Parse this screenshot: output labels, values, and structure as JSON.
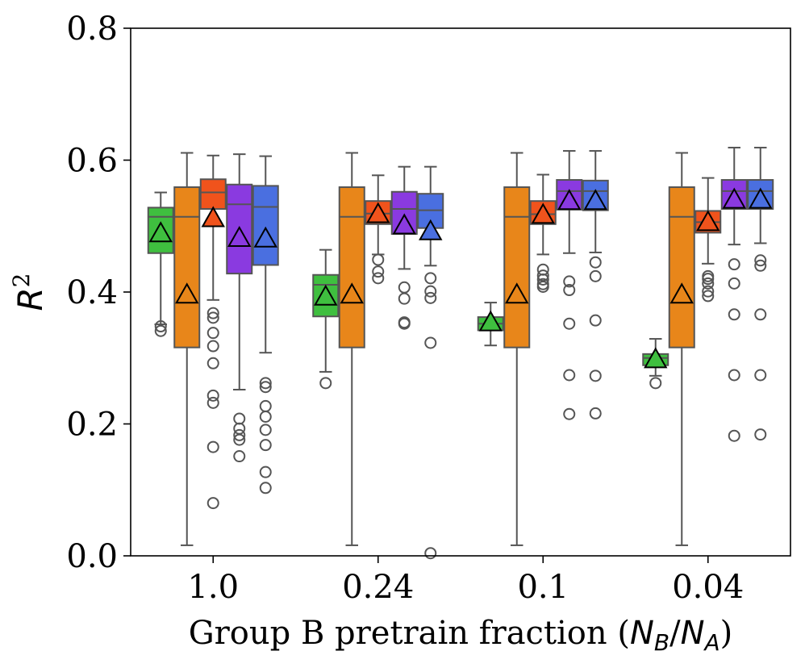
{
  "chart_data": {
    "type": "box",
    "title": "",
    "xlabel_prefix": "Group B pretrain fraction (",
    "xlabel_NB": "N",
    "xlabel_NB_sub": "B",
    "xlabel_slash": "/",
    "xlabel_NA": "N",
    "xlabel_NA_sub": "A",
    "xlabel_suffix": ")",
    "ylabel_base": "R",
    "ylabel_sup": "2",
    "ylim": [
      0.0,
      0.8
    ],
    "yticks": [
      "0.0",
      "0.2",
      "0.4",
      "0.6",
      "0.8"
    ],
    "categories": [
      "1.0",
      "0.24",
      "0.1",
      "0.04"
    ],
    "series_colors": [
      "#3fbf3f",
      "#e8861a",
      "#f0531c",
      "#8a3ae0",
      "#4a6fe0"
    ],
    "groups": [
      {
        "category": "1.0",
        "boxes": [
          {
            "q1": 0.459,
            "median": 0.514,
            "q3": 0.528,
            "whislo": 0.351,
            "whishi": 0.551,
            "mean": 0.488,
            "fliers": [
              0.348,
              0.341
            ]
          },
          {
            "q1": 0.316,
            "median": 0.514,
            "q3": 0.559,
            "whislo": 0.016,
            "whishi": 0.611,
            "mean": 0.395,
            "fliers": []
          },
          {
            "q1": 0.526,
            "median": 0.551,
            "q3": 0.571,
            "whislo": 0.388,
            "whishi": 0.607,
            "mean": 0.511,
            "fliers": [
              0.368,
              0.361,
              0.338,
              0.318,
              0.292,
              0.243,
              0.232,
              0.165,
              0.08
            ]
          },
          {
            "q1": 0.428,
            "median": 0.533,
            "q3": 0.563,
            "whislo": 0.252,
            "whishi": 0.609,
            "mean": 0.481,
            "fliers": [
              0.208,
              0.193,
              0.183,
              0.176,
              0.151
            ]
          },
          {
            "q1": 0.441,
            "median": 0.529,
            "q3": 0.561,
            "whislo": 0.308,
            "whishi": 0.606,
            "mean": 0.48,
            "fliers": [
              0.262,
              0.256,
              0.227,
              0.211,
              0.191,
              0.168,
              0.127,
              0.103
            ]
          }
        ]
      },
      {
        "category": "0.24",
        "boxes": [
          {
            "q1": 0.363,
            "median": 0.411,
            "q3": 0.426,
            "whislo": 0.279,
            "whishi": 0.464,
            "mean": 0.392,
            "fliers": [
              0.262
            ]
          },
          {
            "q1": 0.316,
            "median": 0.514,
            "q3": 0.559,
            "whislo": 0.016,
            "whishi": 0.611,
            "mean": 0.395,
            "fliers": []
          },
          {
            "q1": 0.503,
            "median": 0.519,
            "q3": 0.538,
            "whislo": 0.457,
            "whishi": 0.577,
            "mean": 0.517,
            "fliers": [
              0.449,
              0.431,
              0.421
            ]
          },
          {
            "q1": 0.488,
            "median": 0.526,
            "q3": 0.552,
            "whislo": 0.435,
            "whishi": 0.59,
            "mean": 0.5,
            "fliers": [
              0.407,
              0.39,
              0.354,
              0.352
            ]
          },
          {
            "q1": 0.497,
            "median": 0.524,
            "q3": 0.549,
            "whislo": 0.44,
            "whishi": 0.59,
            "mean": 0.491,
            "fliers": [
              0.421,
              0.401,
              0.391,
              0.323,
              0.004
            ]
          }
        ]
      },
      {
        "category": "0.1",
        "boxes": [
          {
            "q1": 0.342,
            "median": 0.352,
            "q3": 0.362,
            "whislo": 0.319,
            "whishi": 0.384,
            "mean": 0.353,
            "fliers": []
          },
          {
            "q1": 0.316,
            "median": 0.514,
            "q3": 0.559,
            "whislo": 0.016,
            "whishi": 0.611,
            "mean": 0.395,
            "fliers": []
          },
          {
            "q1": 0.503,
            "median": 0.518,
            "q3": 0.538,
            "whislo": 0.457,
            "whishi": 0.578,
            "mean": 0.516,
            "fliers": [
              0.434,
              0.425,
              0.419,
              0.412,
              0.408
            ]
          },
          {
            "q1": 0.525,
            "median": 0.553,
            "q3": 0.57,
            "whislo": 0.459,
            "whishi": 0.614,
            "mean": 0.537,
            "fliers": [
              0.416,
              0.403,
              0.352,
              0.274,
              0.215
            ]
          },
          {
            "q1": 0.524,
            "median": 0.553,
            "q3": 0.569,
            "whislo": 0.46,
            "whishi": 0.614,
            "mean": 0.537,
            "fliers": [
              0.445,
              0.424,
              0.357,
              0.273,
              0.216
            ]
          }
        ]
      },
      {
        "category": "0.04",
        "boxes": [
          {
            "q1": 0.289,
            "median": 0.3,
            "q3": 0.306,
            "whislo": 0.273,
            "whishi": 0.329,
            "mean": 0.297,
            "fliers": [
              0.262
            ]
          },
          {
            "q1": 0.316,
            "median": 0.514,
            "q3": 0.559,
            "whislo": 0.016,
            "whishi": 0.611,
            "mean": 0.395,
            "fliers": []
          },
          {
            "q1": 0.49,
            "median": 0.506,
            "q3": 0.523,
            "whislo": 0.443,
            "whishi": 0.573,
            "mean": 0.505,
            "fliers": [
              0.424,
              0.42,
              0.413,
              0.401,
              0.394
            ]
          },
          {
            "q1": 0.526,
            "median": 0.553,
            "q3": 0.57,
            "whislo": 0.472,
            "whishi": 0.619,
            "mean": 0.539,
            "fliers": [
              0.442,
              0.413,
              0.366,
              0.274,
              0.182
            ]
          },
          {
            "q1": 0.526,
            "median": 0.553,
            "q3": 0.57,
            "whislo": 0.474,
            "whishi": 0.619,
            "mean": 0.539,
            "fliers": [
              0.448,
              0.44,
              0.366,
              0.274,
              0.184
            ]
          }
        ]
      }
    ]
  }
}
